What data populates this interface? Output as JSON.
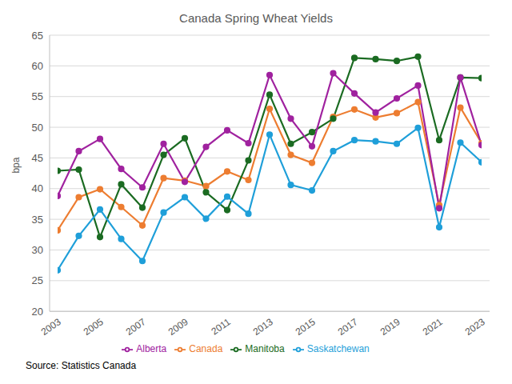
{
  "chart_data": {
    "type": "line",
    "title": "Canada Spring Wheat Yields",
    "ylabel": "bpa",
    "annotations": [
      "Source: Statistics Canada"
    ],
    "x": [
      2003,
      2004,
      2005,
      2006,
      2007,
      2008,
      2009,
      2010,
      2011,
      2012,
      2013,
      2014,
      2015,
      2016,
      2017,
      2018,
      2019,
      2020,
      2021,
      2022,
      2023
    ],
    "series": [
      {
        "name": "Canada",
        "color": "#ed7d31",
        "marker": "circle",
        "values": [
          33.2,
          38.6,
          39.9,
          37.0,
          34.0,
          41.7,
          41.3,
          40.4,
          42.8,
          41.4,
          53.0,
          45.5,
          44.2,
          51.7,
          52.9,
          51.6,
          52.3,
          54.1,
          37.3,
          53.2,
          47.4
        ]
      },
      {
        "name": "Manitoba",
        "color": "#1b6b22",
        "marker": "circle",
        "values": [
          42.9,
          43.1,
          32.1,
          40.7,
          36.9,
          45.5,
          48.2,
          39.4,
          36.5,
          44.6,
          55.3,
          47.3,
          49.2,
          51.4,
          61.3,
          61.1,
          60.8,
          61.5,
          47.9,
          58.1,
          58.0
        ]
      },
      {
        "name": "Saskatchewan",
        "color": "#1f9fd9",
        "marker": "circle",
        "values": [
          26.7,
          32.3,
          36.6,
          31.8,
          28.2,
          36.1,
          38.6,
          35.1,
          38.7,
          35.9,
          48.8,
          40.6,
          39.7,
          46.1,
          47.9,
          47.7,
          47.3,
          49.9,
          33.7,
          47.5,
          44.3
        ]
      },
      {
        "name": "Alberta",
        "color": "#a0229f",
        "marker": "circle",
        "values": [
          38.8,
          46.1,
          48.1,
          43.2,
          40.2,
          47.3,
          41.1,
          46.8,
          49.5,
          47.4,
          58.5,
          51.4,
          46.9,
          58.8,
          55.5,
          52.4,
          54.7,
          56.8,
          36.8,
          58.1,
          47.1
        ]
      }
    ],
    "xlim": [
      2003,
      2023
    ],
    "xticks": [
      2003,
      2005,
      2007,
      2009,
      2011,
      2013,
      2015,
      2017,
      2019,
      2021,
      2023
    ],
    "ylim": [
      20,
      65
    ],
    "yticks": [
      20,
      25,
      30,
      35,
      40,
      45,
      50,
      55,
      60,
      65
    ],
    "grid": true,
    "legend": "bottom"
  }
}
